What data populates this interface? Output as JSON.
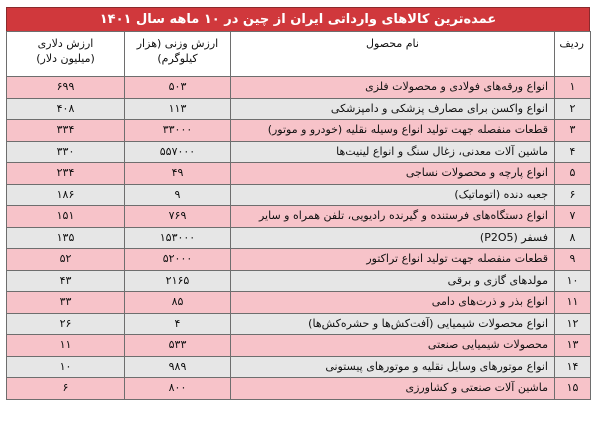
{
  "title": "عمده‌ترین کالاهای وارداتی ایران از چین در ۱۰ ماهه سال ۱۴۰۱",
  "headers": {
    "row": "ردیف",
    "name": "نام محصول",
    "weight_line1": "ارزش وزنی (هزار",
    "weight_line2": "کیلوگرم)",
    "value_line1": "ارزش دلاری",
    "value_line2": "(میلیون دلار)"
  },
  "colors": {
    "title_bg": "#d0383c",
    "row_pink": "#f7c3c9",
    "row_gray": "#e6e6e6"
  },
  "rows": [
    {
      "num": "۱",
      "name": "انواع ورقه‌های فولادی و محصولات فلزی",
      "weight": "۵۰۳",
      "value": "۶۹۹"
    },
    {
      "num": "۲",
      "name": "انواع واکسن برای مصارف پزشکی و دامپزشکی",
      "weight": "۱۱۳",
      "value": "۴۰۸"
    },
    {
      "num": "۳",
      "name": "قطعات منفصله جهت تولید انواع وسیله نقلیه (خودرو و موتور)",
      "weight": "۳۳۰۰۰",
      "value": "۳۳۴"
    },
    {
      "num": "۴",
      "name": "ماشین آلات معدنی، زغال سنگ و انواع لینیت‌ها",
      "weight": "۵۵۷۰۰۰",
      "value": "۳۳۰"
    },
    {
      "num": "۵",
      "name": "انواع پارچه و محصولات نساجی",
      "weight": "۴۹",
      "value": "۲۳۴"
    },
    {
      "num": "۶",
      "name": "جعبه دنده (اتوماتیک)",
      "weight": "۹",
      "value": "۱۸۶"
    },
    {
      "num": "۷",
      "name": "انواع دستگاه‌های فرستنده و گیرنده رادیویی، تلفن همراه و سایر",
      "weight": "۷۶۹",
      "value": "۱۵۱"
    },
    {
      "num": "۸",
      "name": "فسفر (P2O5)",
      "weight": "۱۵۳۰۰۰",
      "value": "۱۳۵"
    },
    {
      "num": "۹",
      "name": "قطعات منفصله جهت تولید انواع تراکتور",
      "weight": "۵۲۰۰۰",
      "value": "۵۲"
    },
    {
      "num": "۱۰",
      "name": "مولدهای گازی و برقی",
      "weight": "۲۱۶۵",
      "value": "۴۳"
    },
    {
      "num": "۱۱",
      "name": "انواع بذر و ذرت‌های دامی",
      "weight": "۸۵",
      "value": "۳۳"
    },
    {
      "num": "۱۲",
      "name": "انواع محصولات شیمیایی (آفت‌کش‌ها و حشره‌کش‌ها)",
      "weight": "۴",
      "value": "۲۶"
    },
    {
      "num": "۱۳",
      "name": "محصولات شیمیایی صنعتی",
      "weight": "۵۳۳",
      "value": "۱۱"
    },
    {
      "num": "۱۴",
      "name": "انواع موتورهای وسایل نقلیه و موتورهای پیستونی",
      "weight": "۹۸۹",
      "value": "۱۰"
    },
    {
      "num": "۱۵",
      "name": "ماشین آلات صنعتی و کشاورزی",
      "weight": "۸۰۰",
      "value": "۶"
    }
  ]
}
